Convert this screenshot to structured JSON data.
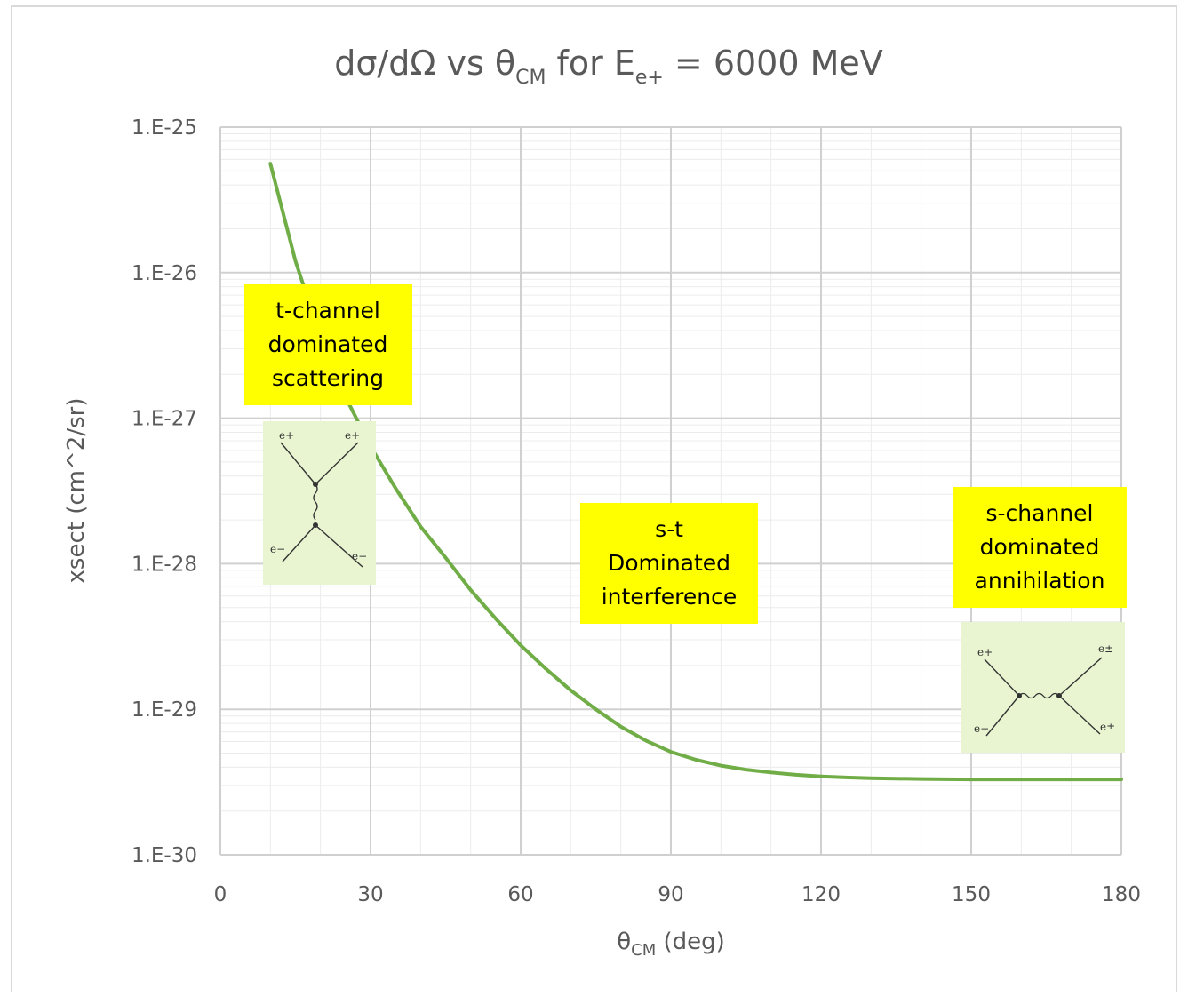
{
  "chart_data": {
    "type": "line",
    "title": {
      "main_prefix": "dσ/dΩ vs θ",
      "main_sub_cm": "CM",
      "main_mid": " for E",
      "main_sub_e": "e+",
      "main_suffix": " = 6000 MeV"
    },
    "xlabel": {
      "prefix": "θ",
      "sub": "CM",
      "suffix": " (deg)"
    },
    "ylabel": "xsect (cm^2/sr)",
    "xlim": [
      0,
      180
    ],
    "ylim": [
      1e-30,
      1e-25
    ],
    "yscale": "log",
    "grid": true,
    "x_ticks": [
      "0",
      "30",
      "60",
      "90",
      "120",
      "150",
      "180"
    ],
    "y_ticks": [
      "1.E-25",
      "1.E-26",
      "1.E-27",
      "1.E-28",
      "1.E-29",
      "1.E-30"
    ],
    "series": [
      {
        "color": "#70ad47",
        "x": [
          10,
          15,
          20,
          25,
          30,
          35,
          40,
          45,
          50,
          55,
          60,
          65,
          70,
          75,
          80,
          85,
          90,
          95,
          100,
          105,
          110,
          115,
          120,
          125,
          130,
          135,
          140,
          145,
          150,
          155,
          160,
          165,
          170,
          175,
          180
        ],
        "y": [
          5.6e-26,
          1.2e-26,
          3.6e-27,
          1.4e-27,
          6.4e-28,
          3.3e-28,
          1.8e-28,
          1.1e-28,
          6.6e-29,
          4.2e-29,
          2.75e-29,
          1.9e-29,
          1.35e-29,
          1e-29,
          7.6e-30,
          6.1e-30,
          5.1e-30,
          4.5e-30,
          4.1e-30,
          3.85e-30,
          3.68e-30,
          3.55e-30,
          3.46e-30,
          3.4e-30,
          3.36e-30,
          3.34e-30,
          3.32e-30,
          3.31e-30,
          3.3e-30,
          3.3e-30,
          3.3e-30,
          3.3e-30,
          3.3e-30,
          3.3e-30,
          3.3e-30
        ]
      }
    ],
    "annotations": [
      {
        "lines": [
          "t-channel",
          "dominated",
          "scattering"
        ]
      },
      {
        "lines": [
          "s-t",
          "Dominated",
          "interference"
        ]
      },
      {
        "lines": [
          "s-channel",
          "dominated",
          "annihilation"
        ]
      }
    ],
    "diagram_labels": {
      "t": [
        "e+",
        "e+",
        "e−",
        "e−"
      ],
      "s": [
        "e+",
        "e±",
        "e−",
        "e±"
      ]
    },
    "colors": {
      "annotation_bg": "#ffff00",
      "diagram_bg": "#e8f5d0",
      "grid": "#d9d9d9"
    }
  }
}
